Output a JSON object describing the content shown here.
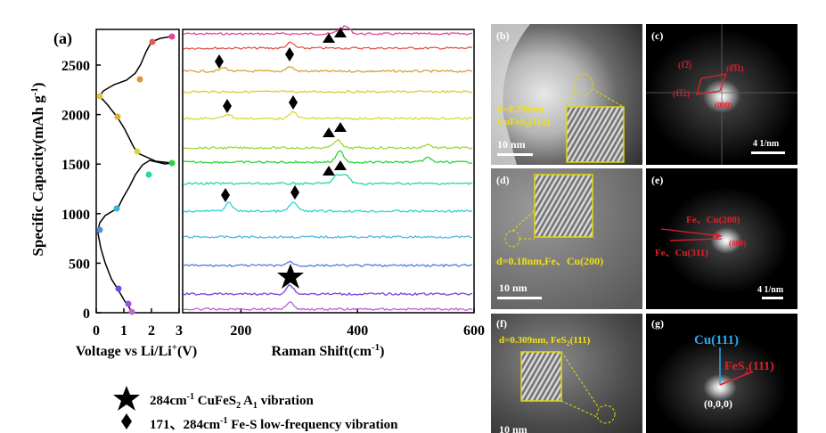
{
  "panel_a": {
    "label": "(a)",
    "ylabel": "Specific Capacity(mAh g",
    "ylabel_sup": "-1",
    "ylabel_end": ")",
    "y_ticks": [
      "0",
      "500",
      "1000",
      "1500",
      "2000",
      "2500"
    ],
    "volt_x_ticks": [
      "0",
      "1",
      "2",
      "3"
    ],
    "volt_xlabel_pre": "Voltage vs Li/Li",
    "volt_xlabel_sup": "+",
    "volt_xlabel_post": "(V)",
    "raman_x_ticks": [
      "200",
      "400",
      "600"
    ],
    "raman_xlabel": "Raman Shift(cm",
    "raman_xlabel_sup": "-1",
    "raman_xlabel_end": ")"
  },
  "legend": {
    "star_pre": "284cm",
    "star_sup": "-1",
    "star_mid": " CuFeS",
    "star_sub": "2",
    "star_post": "  A",
    "star_sub2": "1",
    "star_end": " vibration",
    "diamond_pre": "171、284cm",
    "diamond_sup": "-1",
    "diamond_post": " Fe-S low-frequency vibration"
  },
  "panels": {
    "b": {
      "label": "(b)",
      "d_text": "d=0.299nm",
      "phase_pre": "CuFeS",
      "phase_sub": "2",
      "phase_post": "(112)",
      "scale": "10 nm"
    },
    "c": {
      "label": "(c)",
      "spot1": "(1̅2̅)",
      "spot2": "(0̅3̅1)",
      "spot3": "(1̅1̅2)",
      "origin": "(000)",
      "scale": "4 1/nm"
    },
    "d": {
      "label": "(d)",
      "d_text": "d=0.18nm,Fe、Cu(200)",
      "scale": "10 nm"
    },
    "e": {
      "label": "(e)",
      "t1": "Fe、Cu(200)",
      "t2": "Fe、Cu(311)",
      "origin": "(000)",
      "scale": "4 1/nm"
    },
    "f": {
      "label": "(f)",
      "d_text": "d=0.309nm, FeS",
      "d_sub": "2",
      "d_post": "(111)",
      "scale": "10 nm"
    },
    "g": {
      "label": "(g)",
      "cu": "Cu(111)",
      "fes_pre": "FeS",
      "fes_sub": "2",
      "fes_post": "(111)",
      "origin": "(0,0,0)"
    }
  },
  "colors": {
    "spectra": [
      "#e8449a",
      "#e05a4e",
      "#d9a23a",
      "#e0c93a",
      "#d4d83a",
      "#9ad83a",
      "#2bd33a",
      "#2ad3a8",
      "#2cd3d8",
      "#4fb8e8",
      "#4f7be0",
      "#7a3fe0",
      "#c05ad8"
    ],
    "annotation_red": "#e0202a",
    "annotation_yellow": "#f0e010",
    "cu_blue": "#2aa8f0"
  }
}
